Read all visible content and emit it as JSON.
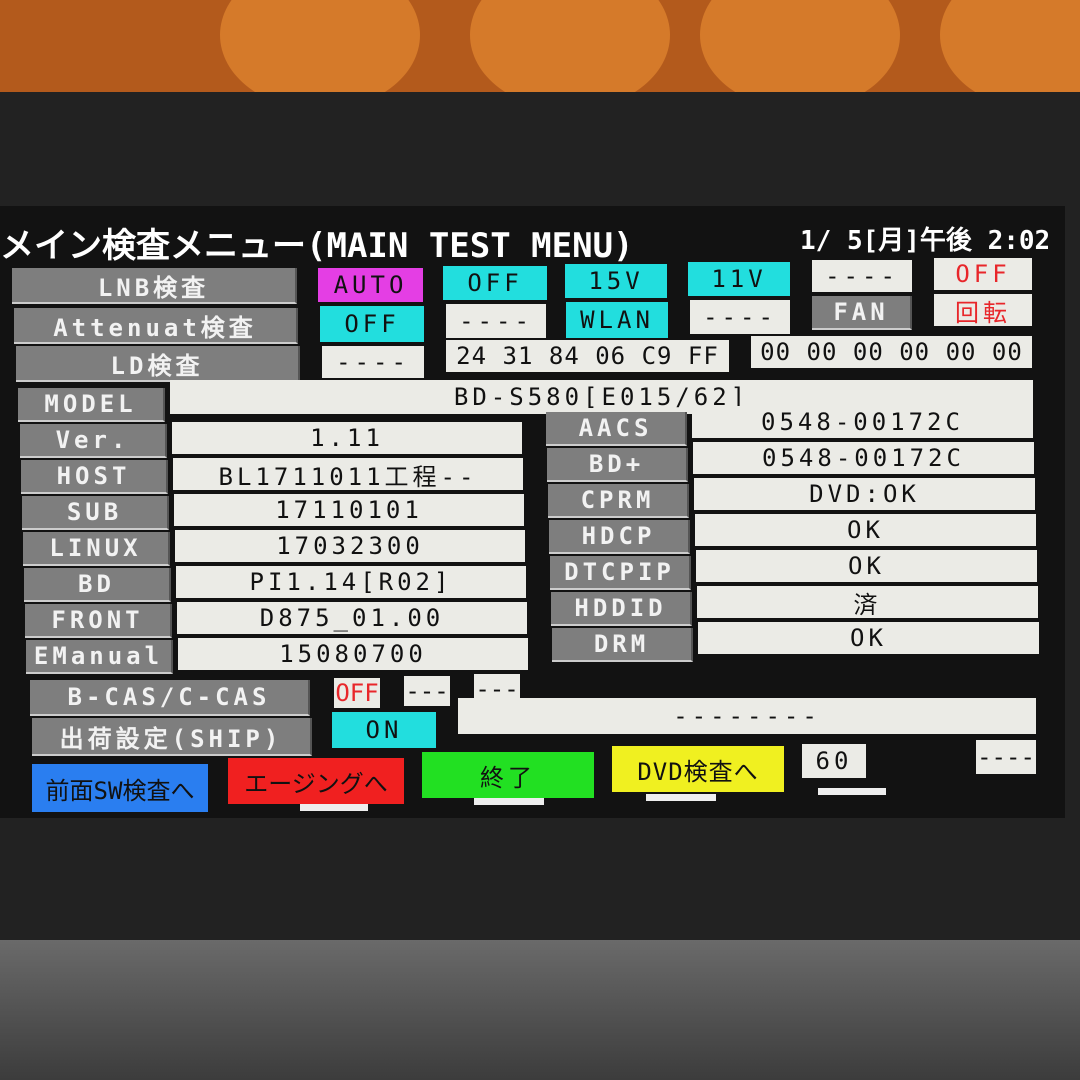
{
  "title": "メイン検査メニュー(MAIN TEST MENU)",
  "datetime": "1/ 5[月]午後 2:02",
  "lnb": {
    "label": "LNB検査",
    "auto": "AUTO",
    "off": "OFF",
    "v15": "15V",
    "v11": "11V",
    "dash": "----",
    "off_red": "OFF"
  },
  "atten": {
    "label": "Attenuat検査",
    "off": "OFF",
    "dash1": "----",
    "wlan": "WLAN",
    "dash2": "----",
    "fan": "FAN",
    "rotate": "回転"
  },
  "ld": {
    "label": "LD検査",
    "dash": "----",
    "hex1": "24 31 84 06 C9 FF",
    "hex2": "00 00 00 00 00 00"
  },
  "model": {
    "label": "MODEL",
    "value": "BD-S580[E015/62]"
  },
  "left": [
    {
      "label": "Ver.",
      "value": "1.11"
    },
    {
      "label": "HOST",
      "value": "BL1711011工程--"
    },
    {
      "label": "SUB",
      "value": "17110101"
    },
    {
      "label": "LINUX",
      "value": "17032300"
    },
    {
      "label": "BD",
      "value": "PI1.14[R02]"
    },
    {
      "label": "FRONT",
      "value": "D875_01.00"
    },
    {
      "label": "EManual",
      "value": "15080700"
    }
  ],
  "right": [
    {
      "label": "AACS",
      "value": "0548-00172C"
    },
    {
      "label": "BD+",
      "value": "0548-00172C"
    },
    {
      "label": "CPRM",
      "value": "DVD:OK"
    },
    {
      "label": "HDCP",
      "value": "OK"
    },
    {
      "label": "DTCPIP",
      "value": "OK"
    },
    {
      "label": "HDDID",
      "value": "済"
    },
    {
      "label": "DRM",
      "value": "OK"
    }
  ],
  "bcas": {
    "label": "B-CAS/C-CAS",
    "off": "OFF",
    "d1": "---",
    "d2": "---"
  },
  "ship": {
    "label": "出荷設定(SHIP)",
    "on": "ON",
    "value": "--------"
  },
  "buttons": {
    "front": "前面SW検査へ",
    "aging": "エージングへ",
    "end": "終了",
    "dvd": "DVD検査へ",
    "count": "60",
    "dash": "----"
  },
  "colors": {
    "blue": "#2a7ef0",
    "red": "#f02020",
    "green": "#22e022",
    "yellow": "#f0f020",
    "cyan": "#22dede",
    "magenta": "#e43ee4"
  }
}
